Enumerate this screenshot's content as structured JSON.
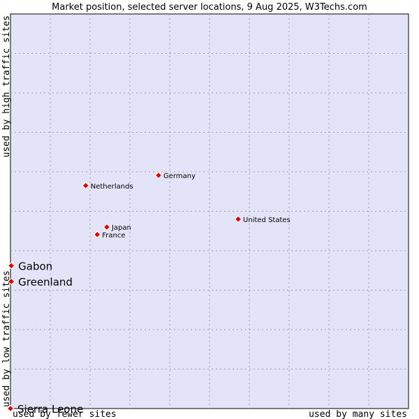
{
  "chart_data": {
    "type": "scatter",
    "title": "Market position, selected server locations, 9 Aug 2025, W3Techs.com",
    "axis_labels": {
      "x_low": "used by fewer sites",
      "x_high": "used by many sites",
      "y_low": "used by low traffic sites",
      "y_high": "used by high traffic sites"
    },
    "xlim": [
      0,
      10
    ],
    "ylim": [
      0,
      10
    ],
    "grid": true,
    "colors": {
      "plot_background": "#e4e4f8",
      "grid": "#9a9ab4",
      "marker": "#e00000",
      "marker_outline": "#ffffff"
    },
    "points": [
      {
        "name": "Germany",
        "x": 3.72,
        "y": 5.91,
        "label_size": "small"
      },
      {
        "name": "Netherlands",
        "x": 1.89,
        "y": 5.65,
        "label_size": "small"
      },
      {
        "name": "United States",
        "x": 5.72,
        "y": 4.8,
        "label_size": "small"
      },
      {
        "name": "Japan",
        "x": 2.42,
        "y": 4.6,
        "label_size": "small"
      },
      {
        "name": "France",
        "x": 2.18,
        "y": 4.41,
        "label_size": "small"
      },
      {
        "name": "Gabon",
        "x": 0.02,
        "y": 3.62,
        "label_size": "large"
      },
      {
        "name": "Greenland",
        "x": 0.02,
        "y": 3.22,
        "label_size": "large"
      },
      {
        "name": "Sierra Leone",
        "x": 0.0,
        "y": 0.0,
        "label_size": "large"
      }
    ]
  }
}
